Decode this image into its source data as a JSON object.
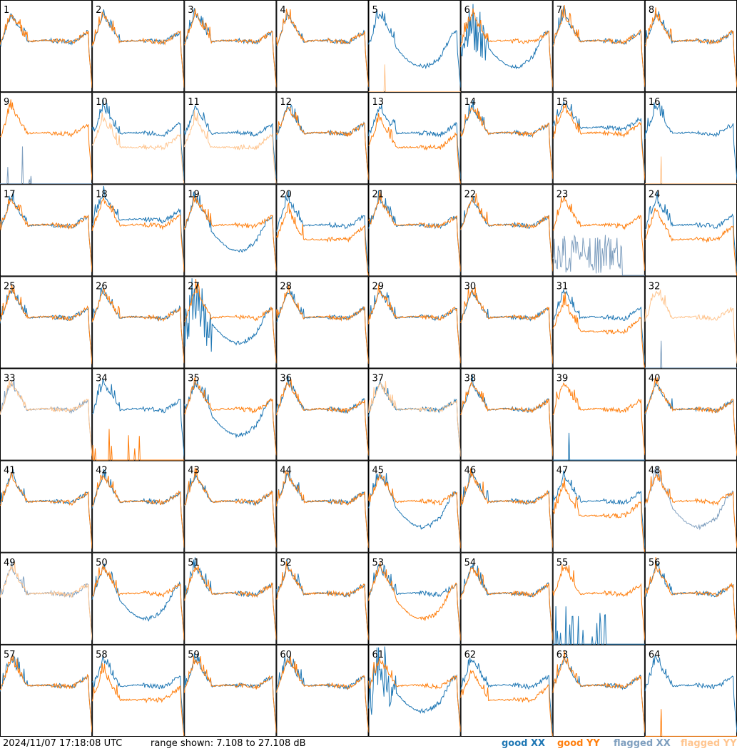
{
  "footer": {
    "timestamp": "2024/11/07 17:18:08 UTC",
    "range_text": "range shown: 7.108 to 27.108 dB"
  },
  "legend": {
    "good_xx": "good XX",
    "good_yy": "good YY",
    "flagged_xx": "flagged XX",
    "flagged_yy": "flagged YY"
  },
  "colors": {
    "good_xx": "#1f77b4",
    "good_yy": "#ff7f0e",
    "flagged_xx": "#7f9fbf",
    "flagged_yy": "#ffc58f"
  },
  "chart_data": {
    "type": "line",
    "grid_rows": 8,
    "grid_cols": 8,
    "ylim": [
      7.108,
      27.108
    ],
    "tiles": [
      {
        "label": "1",
        "xx": "normal",
        "yy": "normal"
      },
      {
        "label": "2",
        "xx": "normal",
        "yy": "normal"
      },
      {
        "label": "3",
        "xx": "normal",
        "yy": "normal"
      },
      {
        "label": "4",
        "xx": "normal",
        "yy": "normal"
      },
      {
        "label": "5",
        "xx": "bowl",
        "yy": "spike_flagged"
      },
      {
        "label": "6",
        "xx": "noisy_bowl",
        "yy": "normal"
      },
      {
        "label": "7",
        "xx": "normal",
        "yy": "normal"
      },
      {
        "label": "8",
        "xx": "normal",
        "yy": "normal"
      },
      {
        "label": "9",
        "xx": "spikes_flagged",
        "yy": "normal"
      },
      {
        "label": "10",
        "xx": "normal",
        "yy": "low_flagged"
      },
      {
        "label": "11",
        "xx": "normal",
        "yy": "low_flagged"
      },
      {
        "label": "12",
        "xx": "normal",
        "yy": "normal"
      },
      {
        "label": "13",
        "xx": "normal",
        "yy": "low"
      },
      {
        "label": "14",
        "xx": "normal",
        "yy": "normal"
      },
      {
        "label": "15",
        "xx": "high",
        "yy": "normal"
      },
      {
        "label": "16",
        "xx": "normal",
        "yy": "spike_flagged"
      },
      {
        "label": "17",
        "xx": "normal",
        "yy": "normal"
      },
      {
        "label": "18",
        "xx": "high",
        "yy": "normal"
      },
      {
        "label": "19",
        "xx": "bowl",
        "yy": "normal"
      },
      {
        "label": "20",
        "xx": "normal",
        "yy": "low"
      },
      {
        "label": "21",
        "xx": "normal",
        "yy": "normal"
      },
      {
        "label": "22",
        "xx": "normal",
        "yy": "normal"
      },
      {
        "label": "23",
        "xx": "noise_flagged",
        "yy": "normal"
      },
      {
        "label": "24",
        "xx": "normal",
        "yy": "low"
      },
      {
        "label": "25",
        "xx": "normal",
        "yy": "normal"
      },
      {
        "label": "26",
        "xx": "normal",
        "yy": "normal"
      },
      {
        "label": "27",
        "xx": "noisy_bowl",
        "yy": "normal"
      },
      {
        "label": "28",
        "xx": "normal",
        "yy": "normal"
      },
      {
        "label": "29",
        "xx": "normal",
        "yy": "normal"
      },
      {
        "label": "30",
        "xx": "normal",
        "yy": "normal"
      },
      {
        "label": "31",
        "xx": "normal",
        "yy": "low"
      },
      {
        "label": "32",
        "xx": "spike_flagged",
        "yy": "normal_flagged"
      },
      {
        "label": "33",
        "xx": "normal_flagged",
        "yy": "normal_flagged"
      },
      {
        "label": "34",
        "xx": "normal",
        "yy": "spikes"
      },
      {
        "label": "35",
        "xx": "bowl",
        "yy": "normal"
      },
      {
        "label": "36",
        "xx": "normal",
        "yy": "normal"
      },
      {
        "label": "37",
        "xx": "normal",
        "yy": "normal_flagged"
      },
      {
        "label": "38",
        "xx": "normal",
        "yy": "normal"
      },
      {
        "label": "39",
        "xx": "spike",
        "yy": "normal"
      },
      {
        "label": "40",
        "xx": "normal",
        "yy": "normal"
      },
      {
        "label": "41",
        "xx": "normal",
        "yy": "normal"
      },
      {
        "label": "42",
        "xx": "normal",
        "yy": "normal"
      },
      {
        "label": "43",
        "xx": "normal",
        "yy": "normal"
      },
      {
        "label": "44",
        "xx": "normal",
        "yy": "normal"
      },
      {
        "label": "45",
        "xx": "bowl",
        "yy": "normal"
      },
      {
        "label": "46",
        "xx": "normal",
        "yy": "normal"
      },
      {
        "label": "47",
        "xx": "normal",
        "yy": "low"
      },
      {
        "label": "48",
        "xx": "bowl_flagged",
        "yy": "normal"
      },
      {
        "label": "49",
        "xx": "normal_flagged",
        "yy": "normal_flagged"
      },
      {
        "label": "50",
        "xx": "bowl",
        "yy": "normal"
      },
      {
        "label": "51",
        "xx": "normal",
        "yy": "normal"
      },
      {
        "label": "52",
        "xx": "normal",
        "yy": "normal"
      },
      {
        "label": "53",
        "xx": "normal",
        "yy": "bowl"
      },
      {
        "label": "54",
        "xx": "normal",
        "yy": "normal"
      },
      {
        "label": "55",
        "xx": "spikes",
        "yy": "normal"
      },
      {
        "label": "56",
        "xx": "normal",
        "yy": "normal"
      },
      {
        "label": "57",
        "xx": "normal",
        "yy": "normal"
      },
      {
        "label": "58",
        "xx": "normal",
        "yy": "low"
      },
      {
        "label": "59",
        "xx": "normal",
        "yy": "normal"
      },
      {
        "label": "60",
        "xx": "normal",
        "yy": "normal"
      },
      {
        "label": "61",
        "xx": "noisy_bowl",
        "yy": "normal"
      },
      {
        "label": "62",
        "xx": "normal",
        "yy": "low"
      },
      {
        "label": "63",
        "xx": "normal",
        "yy": "normal"
      },
      {
        "label": "64",
        "xx": "normal",
        "yy": "spike"
      }
    ]
  }
}
